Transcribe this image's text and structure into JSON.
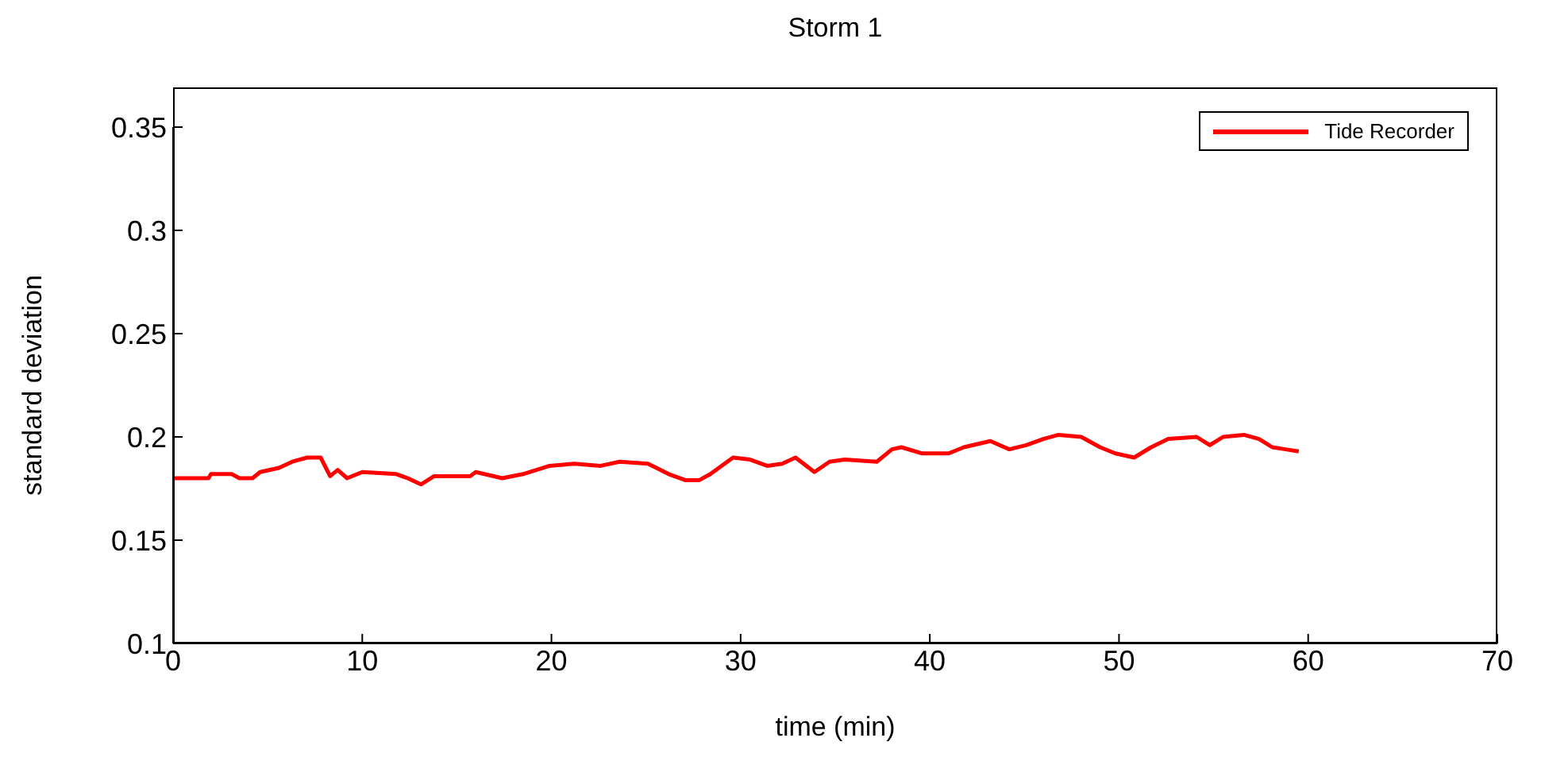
{
  "chart_data": {
    "type": "line",
    "title": "Storm 1",
    "xlabel": "time (min)",
    "ylabel": "standard deviation",
    "x": [
      0.08,
      1.87,
      2.0,
      3.1,
      3.5,
      4.2,
      4.6,
      5.6,
      6.3,
      7.1,
      7.8,
      8.3,
      8.7,
      9.2,
      10.0,
      11.8,
      12.4,
      13.1,
      13.8,
      15.7,
      16.0,
      17.4,
      18.5,
      19.9,
      21.2,
      22.6,
      23.6,
      25.1,
      26.2,
      27.1,
      27.8,
      28.4,
      29.6,
      30.5,
      31.4,
      32.2,
      32.9,
      33.9,
      34.7,
      35.5,
      37.2,
      38.0,
      38.5,
      39.6,
      41.0,
      41.8,
      43.2,
      44.2,
      45.1,
      46.0,
      46.8,
      48.0,
      49.0,
      49.8,
      50.8,
      51.7,
      52.6,
      54.1,
      54.8,
      55.5,
      56.6,
      57.4,
      58.1,
      58.8,
      59.5
    ],
    "series": [
      {
        "name": "Tide Recorder",
        "color": "#ff0000",
        "values": [
          0.18,
          0.18,
          0.182,
          0.182,
          0.18,
          0.18,
          0.183,
          0.185,
          0.188,
          0.19,
          0.19,
          0.181,
          0.184,
          0.18,
          0.183,
          0.182,
          0.18,
          0.177,
          0.181,
          0.181,
          0.183,
          0.18,
          0.182,
          0.186,
          0.187,
          0.186,
          0.188,
          0.187,
          0.182,
          0.179,
          0.179,
          0.182,
          0.19,
          0.189,
          0.186,
          0.187,
          0.19,
          0.183,
          0.188,
          0.189,
          0.188,
          0.194,
          0.195,
          0.192,
          0.192,
          0.195,
          0.198,
          0.194,
          0.196,
          0.199,
          0.201,
          0.2,
          0.195,
          0.192,
          0.19,
          0.195,
          0.199,
          0.2,
          0.196,
          0.2,
          0.201,
          0.199,
          0.195,
          0.194,
          0.193
        ]
      }
    ],
    "xlim": [
      0,
      70
    ],
    "xticks": [
      0,
      10,
      20,
      30,
      40,
      50,
      60,
      70
    ],
    "ylim": [
      0.1,
      0.35
    ],
    "yticks": [
      0.1,
      0.15,
      0.2,
      0.25,
      0.3,
      0.35
    ],
    "grid": false,
    "legend": "top right",
    "marker": "none",
    "line_style": "solid"
  }
}
